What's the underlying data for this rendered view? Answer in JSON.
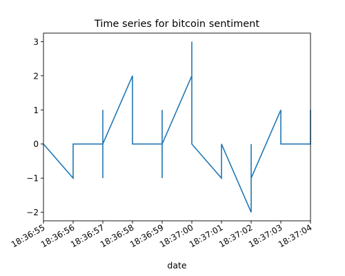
{
  "chart_data": {
    "type": "line",
    "title": "Time series for bitcoin sentiment",
    "xlabel": "date",
    "ylabel": "",
    "x_tick_labels": [
      "18:36:55",
      "18:36:56",
      "18:36:57",
      "18:36:58",
      "18:36:59",
      "18:37:00",
      "18:37:01",
      "18:37:02",
      "18:37:03",
      "18:37:04"
    ],
    "y_ticks": [
      -2,
      -1,
      0,
      1,
      2,
      3
    ],
    "xlim": [
      "18:36:55",
      "18:37:04"
    ],
    "ylim": [
      -2.25,
      3.25
    ],
    "grid": false,
    "colors": {
      "line": "#1f77b4",
      "axes": "#000000",
      "background": "#ffffff"
    },
    "series": [
      {
        "x": [
          "18:36:55",
          "18:36:56",
          "18:36:56",
          "18:36:57",
          "18:36:57",
          "18:36:57",
          "18:36:57",
          "18:36:57",
          "18:36:58",
          "18:36:58",
          "18:36:59",
          "18:36:59",
          "18:36:59",
          "18:36:59",
          "18:37:00",
          "18:37:00",
          "18:37:00",
          "18:37:00",
          "18:37:01",
          "18:37:01",
          "18:37:02",
          "18:37:02",
          "18:37:02",
          "18:37:03",
          "18:37:03",
          "18:37:04",
          "18:37:04"
        ],
        "y": [
          0,
          -1,
          0,
          0,
          1,
          -1,
          1,
          0,
          2,
          0,
          0,
          1,
          -1,
          0,
          2,
          3,
          2,
          0,
          -1,
          0,
          -2,
          0,
          -1,
          1,
          0,
          0,
          1
        ]
      }
    ]
  }
}
